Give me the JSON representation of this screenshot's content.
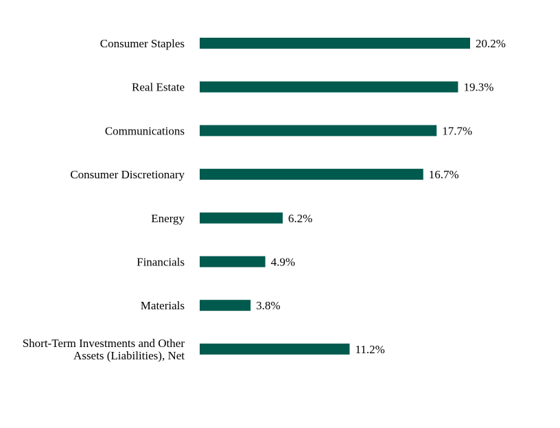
{
  "chart_data": {
    "type": "bar",
    "orientation": "horizontal",
    "categories": [
      [
        "Consumer Staples"
      ],
      [
        "Real Estate"
      ],
      [
        "Communications"
      ],
      [
        "Consumer Discretionary"
      ],
      [
        "Energy"
      ],
      [
        "Financials"
      ],
      [
        "Materials"
      ],
      [
        "Short-Term Investments and Other",
        "Assets (Liabilities), Net"
      ]
    ],
    "values": [
      20.2,
      19.3,
      17.7,
      16.7,
      6.2,
      4.9,
      3.8,
      11.2
    ],
    "value_labels": [
      "20.2%",
      "19.3%",
      "17.7%",
      "16.7%",
      "6.2%",
      "4.9%",
      "3.8%",
      "11.2%"
    ],
    "xlim": [
      0,
      20.2
    ],
    "grid": false,
    "bar_color": "#005A4E"
  }
}
